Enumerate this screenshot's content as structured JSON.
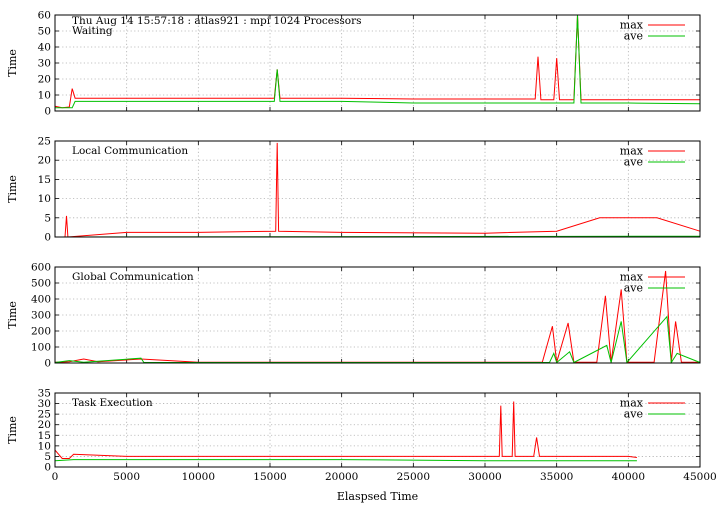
{
  "chart_data": {
    "type": "line",
    "header": "Thu Aug 14 15:57:18 : atlas921 : mpi 1024 Processors",
    "xlabel": "Elaspsed Time",
    "xlim": [
      0,
      45000
    ],
    "xticks": [
      0,
      5000,
      10000,
      15000,
      20000,
      25000,
      30000,
      35000,
      40000,
      45000
    ],
    "legend_position": "top-right",
    "grid": true,
    "series_colors": {
      "max": "#ff0000",
      "ave": "#00c000"
    },
    "panels": [
      {
        "title": "Waiting",
        "ylabel": "Time",
        "ylim": [
          0,
          60
        ],
        "yticks": [
          0,
          10,
          20,
          30,
          40,
          50,
          60
        ],
        "legend": [
          "max",
          "ave"
        ],
        "series": [
          {
            "name": "max",
            "values": [
              [
                0,
                3
              ],
              [
                500,
                2
              ],
              [
                1000,
                2.5
              ],
              [
                1200,
                14
              ],
              [
                1400,
                8
              ],
              [
                3000,
                8
              ],
              [
                6000,
                8
              ],
              [
                9000,
                8
              ],
              [
                12000,
                8
              ],
              [
                15300,
                8
              ],
              [
                15500,
                26
              ],
              [
                15700,
                8
              ],
              [
                20000,
                8
              ],
              [
                25000,
                7.5
              ],
              [
                30000,
                7.5
              ],
              [
                33500,
                7.5
              ],
              [
                33700,
                34
              ],
              [
                33900,
                7
              ],
              [
                34800,
                7
              ],
              [
                35000,
                33
              ],
              [
                35200,
                7
              ],
              [
                36200,
                7
              ],
              [
                36450,
                60
              ],
              [
                36700,
                7
              ],
              [
                38000,
                7
              ],
              [
                40000,
                7
              ],
              [
                42000,
                7
              ],
              [
                45000,
                7
              ]
            ]
          },
          {
            "name": "ave",
            "values": [
              [
                0,
                2
              ],
              [
                1200,
                2
              ],
              [
                1400,
                6
              ],
              [
                5000,
                6
              ],
              [
                10000,
                6
              ],
              [
                15300,
                6
              ],
              [
                15500,
                26
              ],
              [
                15700,
                6
              ],
              [
                20000,
                6
              ],
              [
                25000,
                5
              ],
              [
                30000,
                5
              ],
              [
                33500,
                5
              ],
              [
                36200,
                5
              ],
              [
                36450,
                60
              ],
              [
                36700,
                5
              ],
              [
                40000,
                5
              ],
              [
                45000,
                4.5
              ]
            ]
          }
        ]
      },
      {
        "title": "Local Communication",
        "ylabel": "Time",
        "ylim": [
          0,
          25
        ],
        "yticks": [
          0,
          5,
          10,
          15,
          20,
          25
        ],
        "legend": [
          "max",
          "ave"
        ],
        "series": [
          {
            "name": "max",
            "values": [
              [
                0,
                0
              ],
              [
                700,
                0
              ],
              [
                800,
                5.5
              ],
              [
                900,
                0
              ],
              [
                5000,
                1.2
              ],
              [
                10000,
                1.2
              ],
              [
                15400,
                1.5
              ],
              [
                15500,
                24.5
              ],
              [
                15600,
                1.5
              ],
              [
                20000,
                1.2
              ],
              [
                30000,
                1
              ],
              [
                35000,
                1.5
              ],
              [
                38000,
                5
              ],
              [
                40000,
                5
              ],
              [
                42000,
                5
              ],
              [
                45000,
                1.5
              ]
            ]
          },
          {
            "name": "ave",
            "values": [
              [
                0,
                0
              ],
              [
                45000,
                0.2
              ]
            ]
          }
        ]
      },
      {
        "title": "Global Communication",
        "ylabel": "Time",
        "ylim": [
          0,
          600
        ],
        "yticks": [
          0,
          100,
          200,
          300,
          400,
          500,
          600
        ],
        "legend": [
          "max",
          "ave"
        ],
        "series": [
          {
            "name": "max",
            "values": [
              [
                0,
                5
              ],
              [
                1000,
                8
              ],
              [
                2000,
                25
              ],
              [
                3000,
                8
              ],
              [
                6000,
                25
              ],
              [
                8000,
                15
              ],
              [
                10000,
                5
              ],
              [
                20000,
                5
              ],
              [
                30000,
                5
              ],
              [
                34000,
                5
              ],
              [
                34700,
                230
              ],
              [
                35000,
                5
              ],
              [
                35800,
                250
              ],
              [
                36200,
                5
              ],
              [
                37800,
                5
              ],
              [
                38400,
                420
              ],
              [
                38800,
                5
              ],
              [
                39500,
                460
              ],
              [
                39900,
                5
              ],
              [
                41800,
                5
              ],
              [
                42600,
                575
              ],
              [
                43000,
                5
              ],
              [
                43300,
                260
              ],
              [
                43700,
                5
              ],
              [
                45000,
                5
              ]
            ]
          },
          {
            "name": "ave",
            "values": [
              [
                0,
                3
              ],
              [
                1000,
                15
              ],
              [
                2000,
                5
              ],
              [
                6000,
                30
              ],
              [
                6200,
                3
              ],
              [
                20000,
                3
              ],
              [
                30000,
                3
              ],
              [
                34500,
                3
              ],
              [
                34800,
                60
              ],
              [
                35000,
                3
              ],
              [
                35900,
                70
              ],
              [
                36200,
                3
              ],
              [
                38500,
                110
              ],
              [
                38800,
                3
              ],
              [
                39500,
                260
              ],
              [
                39900,
                3
              ],
              [
                42700,
                290
              ],
              [
                43000,
                3
              ],
              [
                43400,
                60
              ],
              [
                45000,
                3
              ]
            ]
          }
        ]
      },
      {
        "title": "Task Execution",
        "ylabel": "Time",
        "ylim": [
          0,
          35
        ],
        "yticks": [
          0,
          5,
          10,
          15,
          20,
          25,
          30,
          35
        ],
        "legend": [
          "max",
          "ave"
        ],
        "series": [
          {
            "name": "max",
            "values": [
              [
                0,
                8
              ],
              [
                500,
                4
              ],
              [
                1000,
                4
              ],
              [
                1300,
                6
              ],
              [
                5000,
                5
              ],
              [
                10000,
                5
              ],
              [
                20000,
                5
              ],
              [
                30000,
                5
              ],
              [
                31000,
                5
              ],
              [
                31100,
                29
              ],
              [
                31200,
                5
              ],
              [
                31900,
                5
              ],
              [
                32000,
                31
              ],
              [
                32100,
                5
              ],
              [
                33400,
                5
              ],
              [
                33600,
                14
              ],
              [
                33800,
                5
              ],
              [
                36000,
                5
              ],
              [
                40000,
                5
              ],
              [
                40600,
                4.5
              ]
            ]
          },
          {
            "name": "ave",
            "values": [
              [
                0,
                3
              ],
              [
                1300,
                3.5
              ],
              [
                10000,
                3.5
              ],
              [
                20000,
                3.5
              ],
              [
                30000,
                3
              ],
              [
                40600,
                3
              ]
            ]
          }
        ]
      }
    ]
  }
}
